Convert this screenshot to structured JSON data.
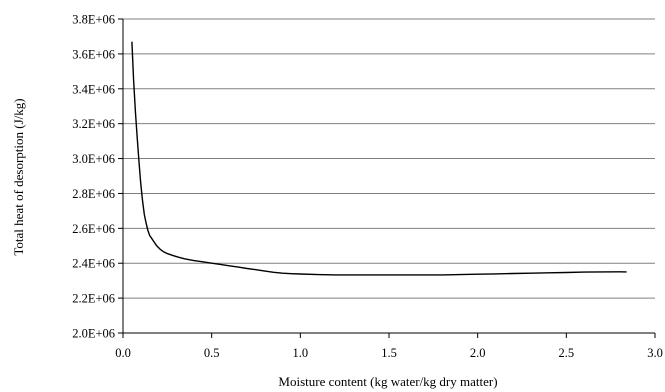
{
  "chart_data": {
    "type": "line",
    "title": "",
    "xlabel": "Moisture content (kg water/kg dry matter)",
    "ylabel": "Total heat of desorption (J/kg)",
    "xlim": [
      0,
      3.0
    ],
    "ylim": [
      2000000,
      3800000
    ],
    "x_ticks": [
      0.0,
      0.5,
      1.0,
      1.5,
      2.0,
      2.5,
      3.0
    ],
    "x_tick_labels": [
      "0.0",
      "0.5",
      "1.0",
      "1.5",
      "2.0",
      "2.5",
      "3.0"
    ],
    "y_ticks": [
      2000000,
      2200000,
      2400000,
      2600000,
      2800000,
      3000000,
      3200000,
      3400000,
      3600000,
      3800000
    ],
    "y_tick_labels": [
      "2.0E+06",
      "2.2E+06",
      "2.4E+06",
      "2.6E+06",
      "2.8E+06",
      "3.0E+06",
      "3.2E+06",
      "3.4E+06",
      "3.6E+06",
      "3.8E+06"
    ],
    "grid": {
      "horizontal": true,
      "vertical": false
    },
    "legend": "none",
    "series_color": "#000000",
    "gridline_color": "#808080",
    "series": [
      {
        "name": "",
        "x": [
          0.05,
          0.06,
          0.07,
          0.08,
          0.09,
          0.1,
          0.11,
          0.12,
          0.13,
          0.14,
          0.15,
          0.17,
          0.19,
          0.21,
          0.23,
          0.25,
          0.28,
          0.31,
          0.35,
          0.4,
          0.45,
          0.5,
          0.55,
          0.6,
          0.65,
          0.7,
          0.75,
          0.8,
          0.85,
          0.9,
          0.95,
          1.0,
          1.1,
          1.2,
          1.3,
          1.4,
          1.5,
          1.6,
          1.7,
          1.8,
          1.9,
          2.0,
          2.1,
          2.2,
          2.3,
          2.4,
          2.5,
          2.6,
          2.7,
          2.8,
          2.84
        ],
        "y": [
          3670000,
          3450000,
          3270000,
          3120000,
          2980000,
          2860000,
          2760000,
          2680000,
          2630000,
          2590000,
          2560000,
          2530000,
          2500000,
          2480000,
          2465000,
          2455000,
          2445000,
          2435000,
          2425000,
          2415000,
          2408000,
          2400000,
          2393000,
          2385000,
          2378000,
          2370000,
          2363000,
          2355000,
          2348000,
          2343000,
          2340000,
          2338000,
          2335000,
          2333000,
          2333000,
          2333000,
          2333000,
          2333000,
          2333000,
          2333000,
          2335000,
          2337000,
          2339000,
          2341000,
          2343000,
          2345000,
          2347000,
          2349000,
          2350000,
          2351000,
          2350000
        ]
      }
    ]
  }
}
